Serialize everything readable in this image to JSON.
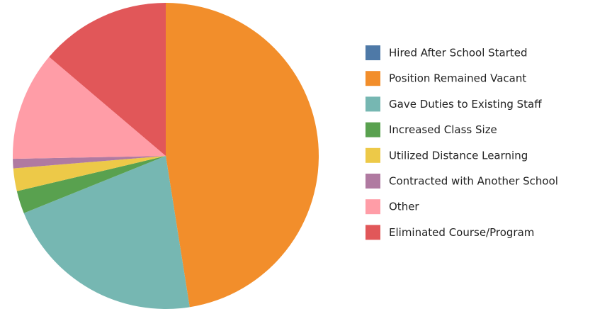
{
  "chart_data": {
    "type": "pie",
    "categories": [
      "Hired After School Started",
      "Position Remained Vacant",
      "Gave Duties to Existing Staff",
      "Increased Class Size",
      "Utilized Distance Learning",
      "Contracted with Another School",
      "Other",
      "Eliminated Course/Program"
    ],
    "values": [
      0,
      47.5,
      21.4,
      2.4,
      2.4,
      1,
      11.5,
      13.8
    ],
    "colors": [
      "#4e79a7",
      "#f28e2b",
      "#76b7b2",
      "#59a14f",
      "#edc948",
      "#b07aa1",
      "#ff9da7",
      "#e15759"
    ],
    "legend": "right"
  }
}
